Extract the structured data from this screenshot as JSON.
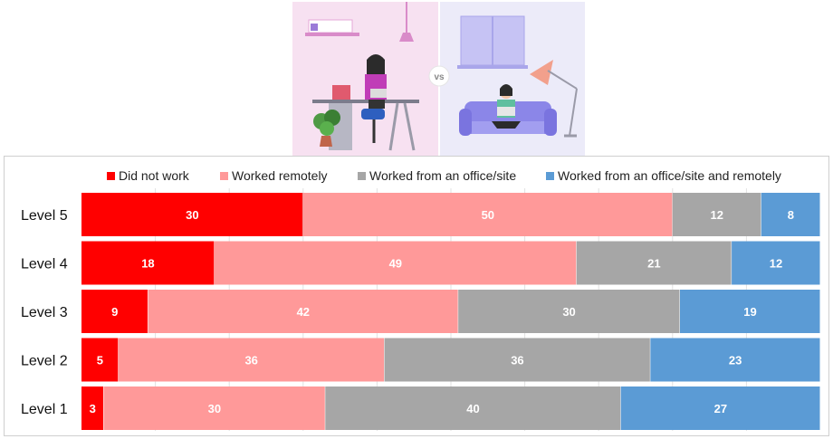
{
  "illustration": {
    "vs_label": "vs",
    "left_icon": "woman-at-office-desk-illustration",
    "right_icon": "woman-on-sofa-with-laptop-illustration"
  },
  "chart_data": {
    "type": "bar",
    "orientation": "horizontal",
    "stacked": true,
    "normalized": true,
    "categories": [
      "Level 5",
      "Level 4",
      "Level 3",
      "Level 2",
      "Level 1"
    ],
    "series": [
      {
        "name": "Did not work",
        "color": "#ff0000",
        "values": [
          30,
          18,
          9,
          5,
          3
        ]
      },
      {
        "name": "Worked remotely",
        "color": "#ff9999",
        "values": [
          50,
          49,
          42,
          36,
          30
        ]
      },
      {
        "name": "Worked from an office/site",
        "color": "#a6a6a6",
        "values": [
          12,
          21,
          30,
          36,
          40
        ]
      },
      {
        "name": "Worked from an office/site and remotely",
        "color": "#5b9bd5",
        "values": [
          8,
          12,
          19,
          23,
          27
        ]
      }
    ],
    "legend_position": "top",
    "grid": "vertical"
  }
}
